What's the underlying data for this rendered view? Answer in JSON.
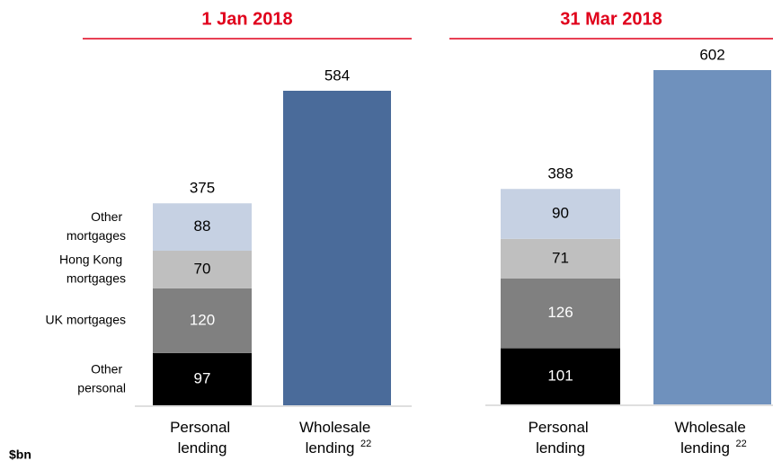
{
  "chart_data": [
    {
      "type": "stacked-bar",
      "title": "1 Jan 2018",
      "y_unit": "$bn",
      "categories": [
        "Personal lending",
        "Wholesale lending"
      ],
      "category_superscripts": [
        null,
        "22"
      ],
      "ylim": [
        0,
        584
      ],
      "series": [
        {
          "name": "Other personal",
          "color": "#000000",
          "values": [
            97,
            null
          ]
        },
        {
          "name": "UK mortgages",
          "color": "#808080",
          "values": [
            120,
            null
          ]
        },
        {
          "name": "Hong Kong mortgages",
          "color": "#bfbfbf",
          "values": [
            70,
            null
          ]
        },
        {
          "name": "Other mortgages",
          "color": "#c6d1e3",
          "values": [
            88,
            null
          ]
        },
        {
          "color": "#4a6b9a",
          "values": [
            null,
            584
          ]
        }
      ],
      "totals": [
        375,
        584
      ]
    },
    {
      "type": "stacked-bar",
      "title": "31 Mar 2018",
      "categories": [
        "Personal lending",
        "Wholesale lending"
      ],
      "category_superscripts": [
        null,
        "22"
      ],
      "ylim": [
        0,
        602
      ],
      "series": [
        {
          "color": "#000000",
          "values": [
            101,
            null
          ]
        },
        {
          "color": "#808080",
          "values": [
            126,
            null
          ]
        },
        {
          "color": "#bfbfbf",
          "values": [
            71,
            null
          ]
        },
        {
          "color": "#c6d1e3",
          "values": [
            90,
            null
          ]
        },
        {
          "color": "#6f91bd",
          "values": [
            null,
            602
          ]
        }
      ],
      "totals": [
        388,
        602
      ]
    }
  ]
}
